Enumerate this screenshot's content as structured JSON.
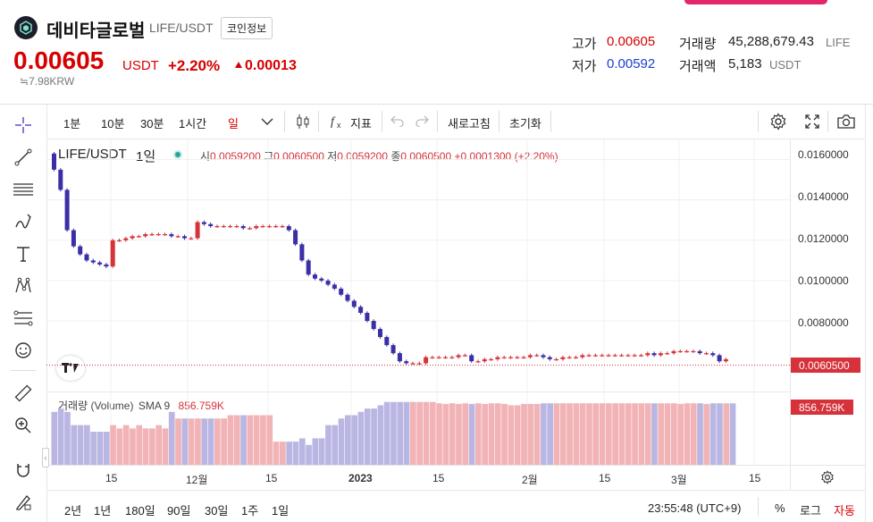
{
  "header": {
    "coin_name": "데비타글로벌",
    "pair": "LIFE/USDT",
    "info_button": "코인정보",
    "price": "0.00605",
    "price_unit": "USDT",
    "change_pct": "+2.20%",
    "change_abs": "0.00013",
    "krw": "≒7.98KRW",
    "high_label": "고가",
    "high_value": "0.00605",
    "low_label": "저가",
    "low_value": "0.00592",
    "volume_label": "거래량",
    "volume_value": "45,288,679.43",
    "volume_unit": "LIFE",
    "amount_label": "거래액",
    "amount_value": "5,183",
    "amount_unit": "USDT"
  },
  "toolbar": {
    "intervals": [
      "1분",
      "10분",
      "30분",
      "1시간",
      "일"
    ],
    "indicator_label": "지표",
    "refresh_label": "새로고침",
    "reset_label": "초기화"
  },
  "legend": {
    "symbol": "LIFE/USDT",
    "interval": "1일",
    "open_label": "시",
    "open": "0.0059200",
    "high_label": "고",
    "high": "0.0060500",
    "low_label": "저",
    "low": "0.0059200",
    "close_label": "종",
    "close": "0.0060500",
    "change": "+0.0001300 (+2.20%)"
  },
  "volume_legend": {
    "label": "거래량 (Volume)",
    "sma": "SMA 9",
    "value": "856.759K"
  },
  "chart_data": {
    "type": "candlestick",
    "y_ticks": [
      "0.0160000",
      "0.0140000",
      "0.0120000",
      "0.0100000",
      "0.0080000"
    ],
    "ylim": [
      0.0045,
      0.017
    ],
    "x_ticks": [
      "15",
      "12월",
      "15",
      "2023",
      "15",
      "2월",
      "15",
      "3월",
      "15"
    ],
    "price_label": "0.0060500",
    "volume_label": "856.759K",
    "closes": [
      0.0155,
      0.0145,
      0.0125,
      0.0117,
      0.0113,
      0.011,
      0.0109,
      0.0108,
      0.0107,
      0.012,
      0.012,
      0.0121,
      0.0122,
      0.0122,
      0.0123,
      0.0123,
      0.0123,
      0.0123,
      0.0122,
      0.0122,
      0.0121,
      0.0121,
      0.0129,
      0.0128,
      0.0127,
      0.0127,
      0.0127,
      0.0127,
      0.0127,
      0.0126,
      0.0126,
      0.0127,
      0.0127,
      0.0127,
      0.0127,
      0.0127,
      0.0125,
      0.0118,
      0.011,
      0.0103,
      0.0101,
      0.01,
      0.0098,
      0.0096,
      0.0093,
      0.009,
      0.0087,
      0.0084,
      0.008,
      0.0076,
      0.0072,
      0.0068,
      0.0064,
      0.006,
      0.0059,
      0.0059,
      0.0059,
      0.0062,
      0.0062,
      0.0062,
      0.0062,
      0.0062,
      0.0063,
      0.0063,
      0.006,
      0.006,
      0.0061,
      0.0061,
      0.0062,
      0.0062,
      0.0062,
      0.0062,
      0.0062,
      0.0063,
      0.0063,
      0.0062,
      0.0061,
      0.0061,
      0.0062,
      0.0062,
      0.0062,
      0.0063,
      0.0063,
      0.0063,
      0.0063,
      0.0063,
      0.0063,
      0.0063,
      0.0063,
      0.0063,
      0.0063,
      0.0064,
      0.0063,
      0.0064,
      0.0064,
      0.0065,
      0.0065,
      0.0065,
      0.0065,
      0.0064,
      0.0064,
      0.0063,
      0.006,
      0.0061
    ],
    "volumes": [
      0.8,
      0.85,
      0.8,
      0.6,
      0.6,
      0.6,
      0.5,
      0.5,
      0.5,
      0.6,
      0.55,
      0.6,
      0.55,
      0.6,
      0.55,
      0.55,
      0.6,
      0.55,
      0.8,
      0.7,
      0.7,
      0.7,
      0.7,
      0.7,
      0.7,
      0.7,
      0.7,
      0.75,
      0.75,
      0.75,
      0.75,
      0.75,
      0.75,
      0.75,
      0.35,
      0.35,
      0.35,
      0.35,
      0.4,
      0.3,
      0.4,
      0.4,
      0.6,
      0.6,
      0.7,
      0.75,
      0.75,
      0.8,
      0.85,
      0.85,
      0.9,
      0.95,
      0.95,
      0.95,
      0.95,
      0.95,
      0.95,
      0.95,
      0.95,
      0.93,
      0.92,
      0.93,
      0.92,
      0.93,
      0.92,
      0.93,
      0.92,
      0.93,
      0.93,
      0.92,
      0.9,
      0.9,
      0.92,
      0.92,
      0.92,
      0.93,
      0.93,
      0.93,
      0.93,
      0.93,
      0.93,
      0.93,
      0.93,
      0.93,
      0.93,
      0.93,
      0.93,
      0.93,
      0.93,
      0.93,
      0.93,
      0.93,
      0.93,
      0.93,
      0.93,
      0.93,
      0.92,
      0.93,
      0.93,
      0.93,
      0.92,
      0.93,
      0.93,
      0.93,
      0.93
    ],
    "up_color": "#d6323b",
    "down_color": "#3a2fa6"
  },
  "ranges": [
    "2년",
    "1년",
    "180일",
    "90일",
    "30일",
    "1주",
    "1일"
  ],
  "footer": {
    "time": "23:55:48 (UTC+9)",
    "percent": "%",
    "log": "로그",
    "auto": "자동"
  }
}
